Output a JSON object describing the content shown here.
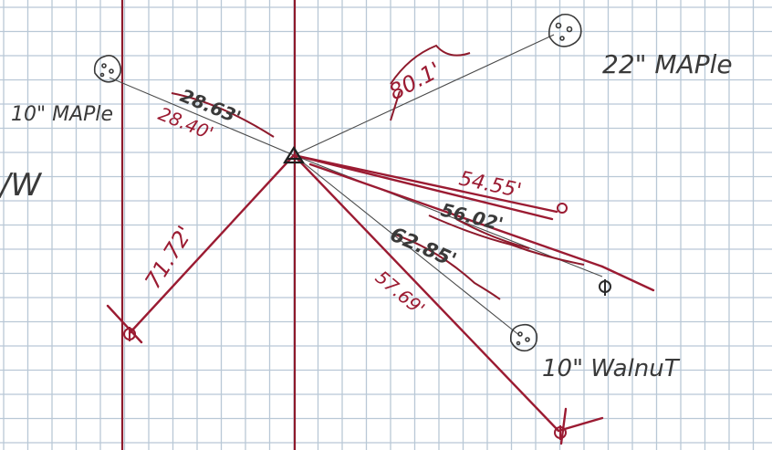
{
  "colors": {
    "paper": "#ffffff",
    "grid": "#b9c8d6",
    "red_ink": "#9b1b32",
    "pencil": "#3a3a3a"
  },
  "labels": {
    "maple_left": "10\" MAPle",
    "maple_right": "22\" MAPle",
    "walnut": "10\" WalnuT",
    "margin_mark": "/W"
  },
  "measurements": {
    "m1": "28.63'",
    "m2": "28.40'",
    "m3": "80.1'",
    "m4": "54.55'",
    "m5": "56.02'",
    "m6": "62.85'",
    "m7": "57.69'",
    "m8": "71.72'"
  },
  "icons": {
    "tree": "tree-canopy-icon",
    "station": "survey-triangle-icon",
    "pin": "property-pin-icon"
  }
}
